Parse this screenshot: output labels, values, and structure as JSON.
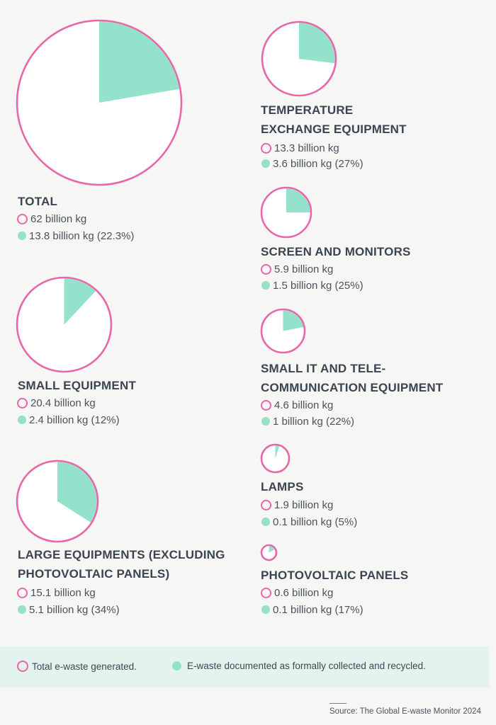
{
  "chart_data": {
    "type": "pie",
    "series": [
      {
        "name": "Total e-waste generated.",
        "color": "#e867a8"
      },
      {
        "name": "E-waste documented as formally collected and recycled.",
        "color": "#94e2cb"
      }
    ],
    "charts": [
      {
        "title": "TOTAL",
        "generated_value": 62,
        "collected_value": 13.8,
        "collected_percent": 22.3,
        "generated_label": "62 billion kg",
        "collected_label": "13.8 billion kg (22.3%)"
      },
      {
        "title": "TEMPERATURE EXCHANGE EQUIPMENT",
        "title_lines": [
          "TEMPERATURE",
          "EXCHANGE EQUIPMENT"
        ],
        "generated_value": 13.3,
        "collected_value": 3.6,
        "collected_percent": 27,
        "generated_label": "13.3 billion kg",
        "collected_label": "3.6 billion kg (27%)"
      },
      {
        "title": "SCREEN AND MONITORS",
        "generated_value": 5.9,
        "collected_value": 1.5,
        "collected_percent": 25,
        "generated_label": "5.9 billion kg",
        "collected_label": "1.5 billion kg (25%)"
      },
      {
        "title": "SMALL EQUIPMENT",
        "generated_value": 20.4,
        "collected_value": 2.4,
        "collected_percent": 12,
        "generated_label": "20.4 billion kg",
        "collected_label": "2.4 billion kg (12%)"
      },
      {
        "title": "SMALL IT AND TELE-COMMUNICATION EQUIPMENT",
        "title_lines": [
          "SMALL IT AND TELE-",
          "COMMUNICATION EQUIPMENT"
        ],
        "generated_value": 4.6,
        "collected_value": 1,
        "collected_percent": 22,
        "generated_label": "4.6 billion kg",
        "collected_label": "1 billion kg (22%)"
      },
      {
        "title": "LAMPS",
        "generated_value": 1.9,
        "collected_value": 0.1,
        "collected_percent": 5,
        "generated_label": "1.9 billion kg",
        "collected_label": "0.1 billion kg (5%)"
      },
      {
        "title": "LARGE EQUIPMENTS (EXCLUDING PHOTOVOLTAIC PANELS)",
        "title_lines": [
          "LARGE EQUIPMENTS (EXCLUDING",
          "PHOTOVOLTAIC PANELS)"
        ],
        "generated_value": 15.1,
        "collected_value": 5.1,
        "collected_percent": 34,
        "generated_label": "15.1 billion kg",
        "collected_label": "5.1 billion kg (34%)"
      },
      {
        "title": "PHOTOVOLTAIC PANELS",
        "generated_value": 0.6,
        "collected_value": 0.1,
        "collected_percent": 17,
        "generated_label": "0.6 billion kg",
        "collected_label": "0.1 billion kg (17%)"
      }
    ]
  },
  "legend": {
    "generated": "Total e-waste generated.",
    "collected": "E-waste documented as formally collected and recycled."
  },
  "source": "Source: The Global E-waste Monitor 2024",
  "icons": {
    "generated_marker": "pink-ring-icon",
    "collected_marker": "mint-dot-icon"
  }
}
